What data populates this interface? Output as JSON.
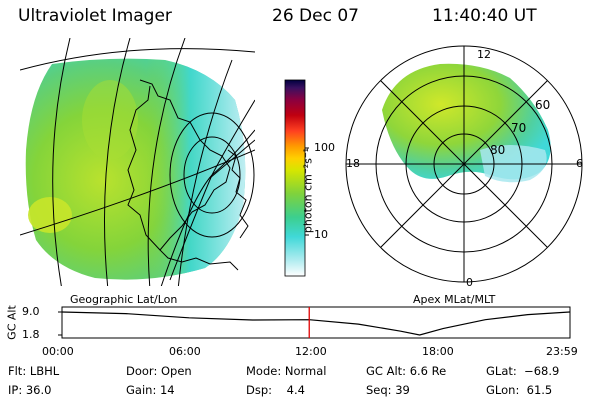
{
  "header": {
    "instrument": "Ultraviolet Imager",
    "date": "26 Dec 07",
    "time": "11:40:40 UT"
  },
  "colorbar": {
    "unit_label": "photon cm⁻²s⁻¹",
    "ticks": [
      "100",
      "10"
    ],
    "colors": [
      "#000040",
      "#3a1060",
      "#8a0040",
      "#c00010",
      "#ff4020",
      "#ff9c00",
      "#ffd000",
      "#d6e600",
      "#7fd23c",
      "#3ccf8e",
      "#40d8d8",
      "#b0ecf0",
      "#ffffff"
    ]
  },
  "left_panel": {
    "label": "Geographic Lat/Lon",
    "fill_colors": {
      "green": "#7fd23c",
      "lime": "#c8e62a",
      "cyan": "#40d8d0",
      "pale": "#b8ecf0"
    }
  },
  "right_panel": {
    "label": "Apex MLat/MLT",
    "mlt_labels": {
      "top": "12",
      "left": "18",
      "right": "6",
      "bottom": "0"
    },
    "lat_labels": [
      "60",
      "70",
      "80"
    ]
  },
  "altitude_plot": {
    "ylabel": "GC Alt",
    "yticks": [
      "9.0",
      "1.8"
    ],
    "xticks": [
      "00:00",
      "06:00",
      "12:00",
      "18:00",
      "23:59"
    ],
    "cursor_color": "#e00000",
    "curve": [
      {
        "hour": 0,
        "alt": 9.0
      },
      {
        "hour": 3,
        "alt": 8.5
      },
      {
        "hour": 6,
        "alt": 7.2
      },
      {
        "hour": 9,
        "alt": 6.5
      },
      {
        "hour": 11.68,
        "alt": 6.6
      },
      {
        "hour": 14,
        "alt": 5.2
      },
      {
        "hour": 16,
        "alt": 3.0
      },
      {
        "hour": 16.9,
        "alt": 1.8
      },
      {
        "hour": 18,
        "alt": 3.8
      },
      {
        "hour": 20,
        "alt": 6.6
      },
      {
        "hour": 22,
        "alt": 8.2
      },
      {
        "hour": 23.98,
        "alt": 9.0
      }
    ],
    "cursor_hour": 11.68
  },
  "info": {
    "filter": "Flt: LBHL",
    "ip": "IP: 36.0",
    "door": "Door: Open",
    "gain": "Gain: 14",
    "mode": "Mode: Normal",
    "dsp": "Dsp:    4.4",
    "gcalt": "GC Alt: 6.6 Re",
    "seq": "Seq: 39",
    "glat": "GLat:  −68.9",
    "glon": "GLon:  61.5"
  }
}
